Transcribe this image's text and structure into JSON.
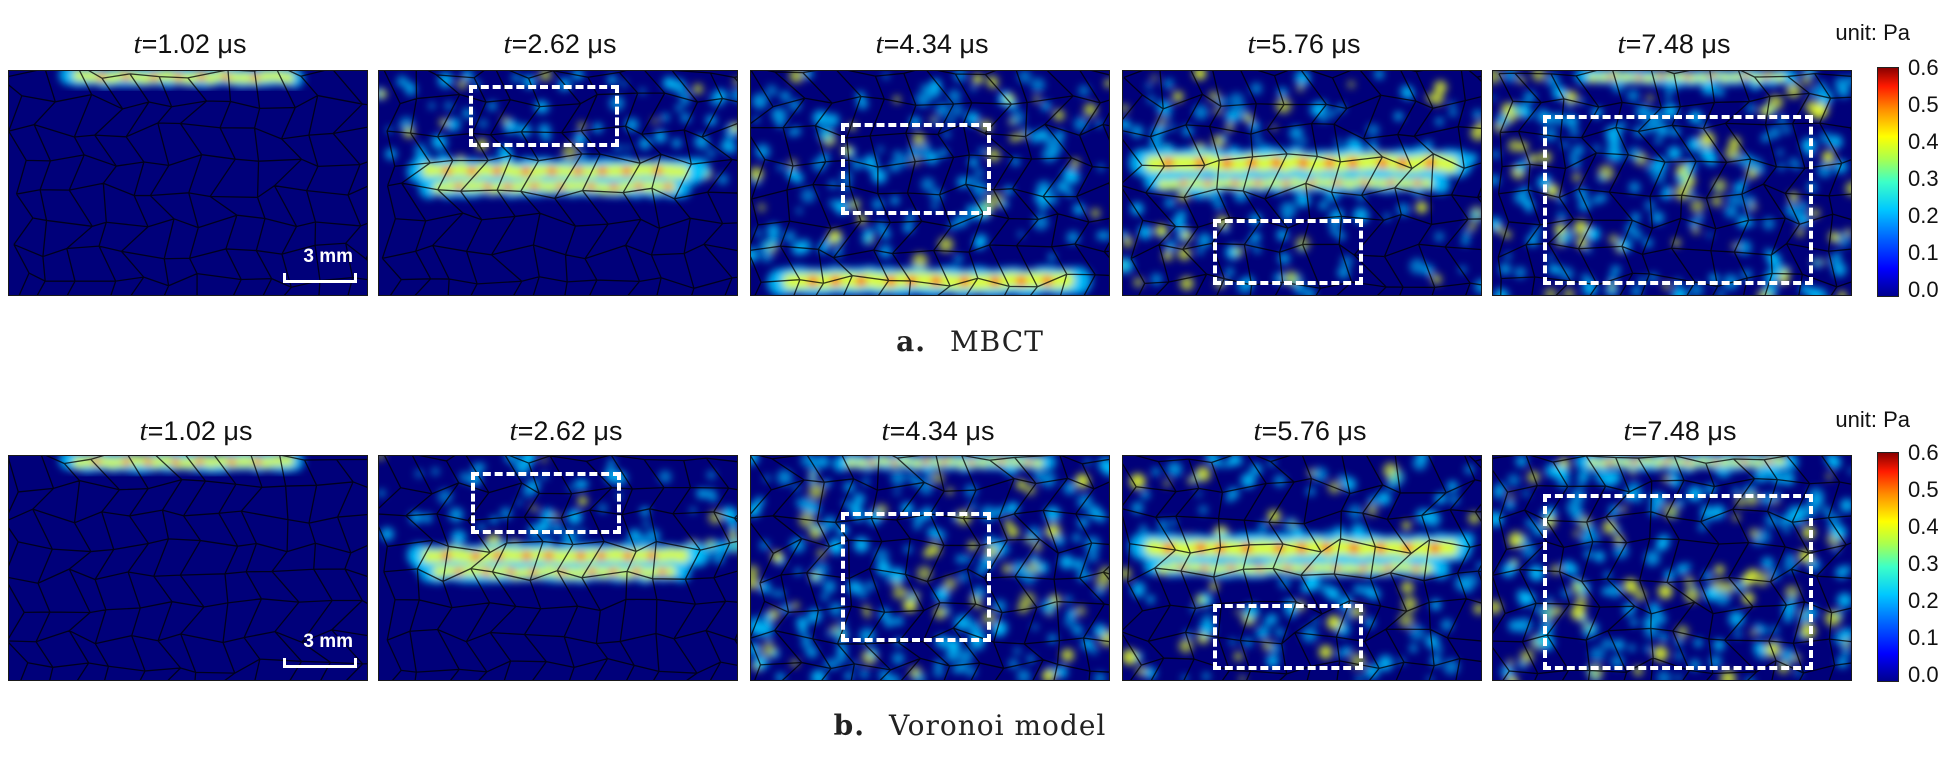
{
  "figure": {
    "rows": [
      {
        "id": "a",
        "caption_letter": "a.",
        "caption_text": "MBCT",
        "unit": "unit: Pa",
        "colorbar_ticks": [
          "0.6",
          "0.5",
          "0.4",
          "0.3",
          "0.2",
          "0.1",
          "0.0"
        ],
        "scale_bar": "3 mm",
        "panels": [
          {
            "t_var": "t",
            "t_value": "=1.02 μs"
          },
          {
            "t_var": "t",
            "t_value": "=2.62 μs"
          },
          {
            "t_var": "t",
            "t_value": "=4.34 μs"
          },
          {
            "t_var": "t",
            "t_value": "=5.76 μs"
          },
          {
            "t_var": "t",
            "t_value": "=7.48 μs"
          }
        ]
      },
      {
        "id": "b",
        "caption_letter": "b.",
        "caption_text": "Voronoi model",
        "unit": "unit: Pa",
        "colorbar_ticks": [
          "0.6",
          "0.5",
          "0.4",
          "0.3",
          "0.2",
          "0.1",
          "0.0"
        ],
        "scale_bar": "3 mm",
        "panels": [
          {
            "t_var": "t",
            "t_value": "=1.02 μs"
          },
          {
            "t_var": "t",
            "t_value": "=2.62 μs"
          },
          {
            "t_var": "t",
            "t_value": "=4.34 μs"
          },
          {
            "t_var": "t",
            "t_value": "=5.76 μs"
          },
          {
            "t_var": "t",
            "t_value": "=7.48 μs"
          }
        ]
      }
    ],
    "colors": {
      "background_field": "#00007a",
      "grain_edges": "#000000",
      "dashed_box": "#ffffff",
      "wave_high": "#ff2000",
      "wave_mid": "#e8ff2a",
      "wave_low": "#00c8ff"
    }
  }
}
